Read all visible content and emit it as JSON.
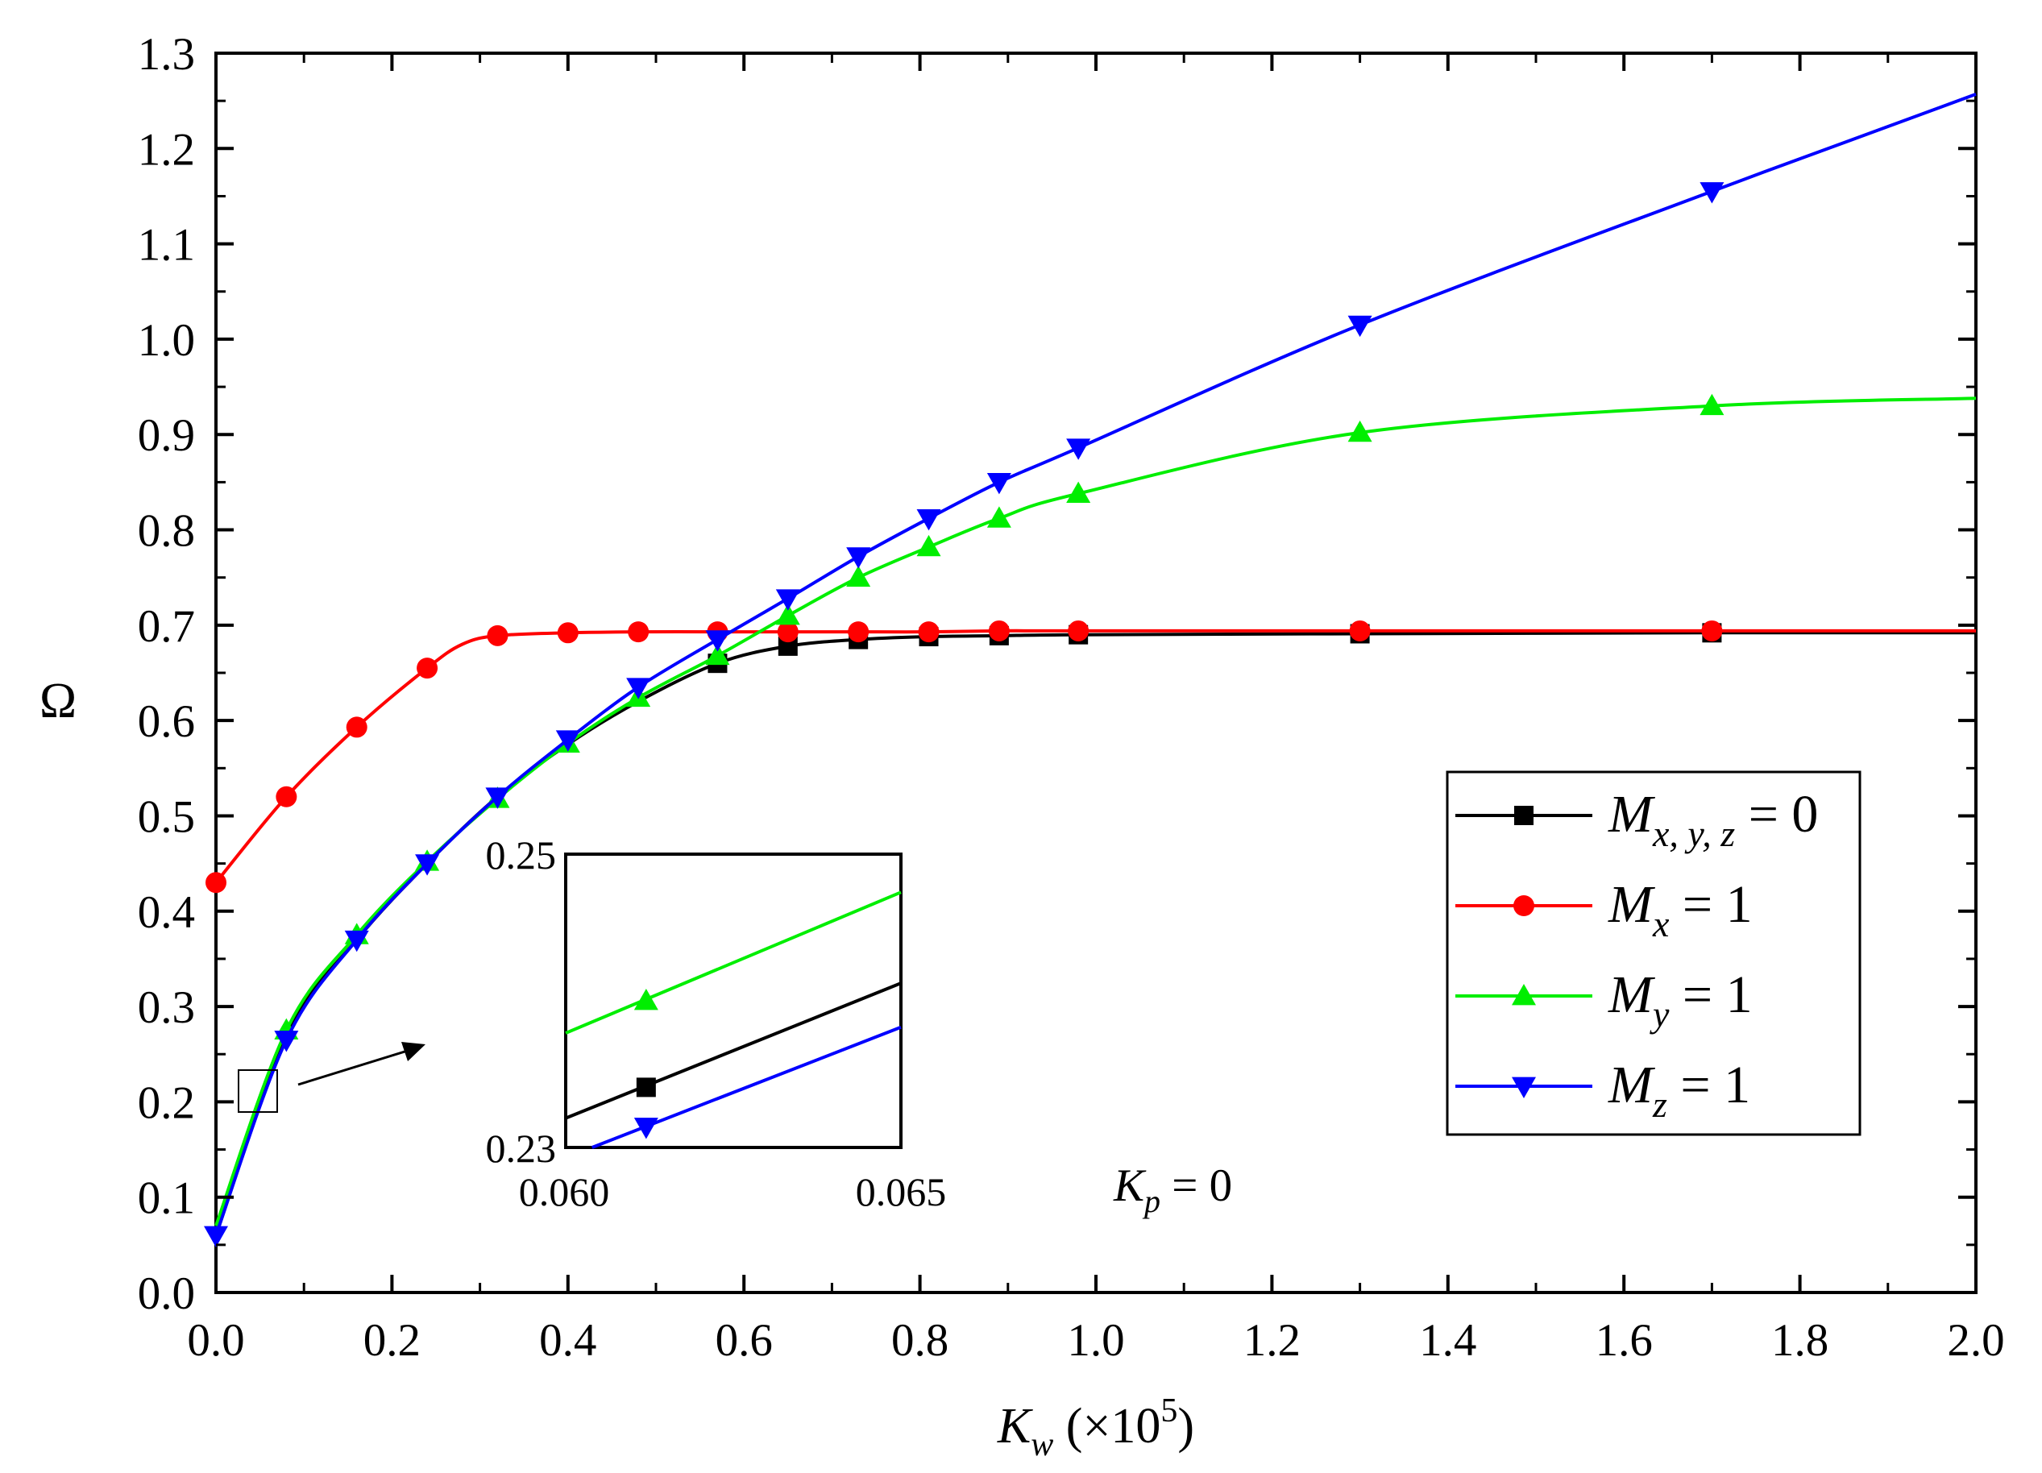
{
  "chart_data": {
    "type": "line",
    "title": "",
    "xlabel": {
      "main": "K",
      "sub": "w",
      "rest": " (×10",
      "sup": "5",
      "close": ")"
    },
    "ylabel": "Ω",
    "xlim": [
      0.0,
      2.0
    ],
    "ylim": [
      0.0,
      1.3
    ],
    "x_ticks": [
      "0.0",
      "0.2",
      "0.4",
      "0.6",
      "0.8",
      "1.0",
      "1.2",
      "1.4",
      "1.6",
      "1.8",
      "2.0"
    ],
    "y_ticks": [
      "0.0",
      "0.1",
      "0.2",
      "0.3",
      "0.4",
      "0.5",
      "0.6",
      "0.7",
      "0.8",
      "0.9",
      "1.0",
      "1.1",
      "1.2",
      "1.3"
    ],
    "grid": false,
    "legend_position": "right",
    "series": [
      {
        "name": "M_{x,y,z} = 0",
        "label_main": "M",
        "label_sub": "x, y, z",
        "label_rest": " = 0",
        "color": "#000000",
        "marker": "square",
        "x": [
          0.0,
          0.08,
          0.16,
          0.24,
          0.32,
          0.4,
          0.48,
          0.57,
          0.65,
          0.73,
          0.81,
          0.89,
          0.98,
          1.3,
          1.7,
          2.0
        ],
        "y": [
          0.06,
          0.27,
          0.37,
          0.45,
          0.52,
          0.575,
          0.62,
          0.66,
          0.678,
          0.685,
          0.688,
          0.689,
          0.69,
          0.691,
          0.692,
          0.692
        ],
        "marker_x": [
          0.57,
          0.65,
          0.73,
          0.81,
          0.89,
          0.98,
          1.3,
          1.7
        ]
      },
      {
        "name": "M_x = 1",
        "label_main": "M",
        "label_sub": "x",
        "label_rest": " = 1",
        "color": "#ff0000",
        "marker": "circle",
        "x": [
          0.0,
          0.08,
          0.16,
          0.24,
          0.28,
          0.32,
          0.4,
          0.48,
          0.57,
          0.65,
          0.73,
          0.81,
          0.89,
          0.98,
          1.3,
          1.7,
          2.0
        ],
        "y": [
          0.43,
          0.52,
          0.593,
          0.655,
          0.68,
          0.689,
          0.692,
          0.693,
          0.693,
          0.693,
          0.693,
          0.693,
          0.694,
          0.694,
          0.694,
          0.694,
          0.694
        ],
        "marker_x": [
          0.0,
          0.08,
          0.16,
          0.24,
          0.32,
          0.4,
          0.48,
          0.57,
          0.65,
          0.73,
          0.81,
          0.89,
          0.98,
          1.3,
          1.7
        ]
      },
      {
        "name": "M_y = 1",
        "label_main": "M",
        "label_sub": "y",
        "label_rest": " = 1",
        "color": "#00ee00",
        "marker": "triangle-up",
        "x": [
          0.0,
          0.08,
          0.16,
          0.24,
          0.32,
          0.4,
          0.48,
          0.57,
          0.65,
          0.73,
          0.81,
          0.89,
          0.98,
          1.3,
          1.7,
          2.0
        ],
        "y": [
          0.07,
          0.275,
          0.375,
          0.452,
          0.518,
          0.576,
          0.624,
          0.668,
          0.71,
          0.75,
          0.782,
          0.812,
          0.838,
          0.902,
          0.93,
          0.938
        ],
        "marker_x": [
          0.08,
          0.16,
          0.24,
          0.32,
          0.4,
          0.48,
          0.57,
          0.65,
          0.73,
          0.81,
          0.89,
          0.98,
          1.3,
          1.7
        ]
      },
      {
        "name": "M_z = 1",
        "label_main": "M",
        "label_sub": "z",
        "label_rest": " = 1",
        "color": "#0000ff",
        "marker": "triangle-down",
        "x": [
          0.0,
          0.08,
          0.16,
          0.24,
          0.32,
          0.4,
          0.48,
          0.57,
          0.65,
          0.73,
          0.81,
          0.89,
          0.98,
          1.3,
          1.7,
          2.0
        ],
        "y": [
          0.06,
          0.265,
          0.37,
          0.45,
          0.52,
          0.58,
          0.635,
          0.685,
          0.728,
          0.772,
          0.812,
          0.85,
          0.886,
          1.015,
          1.155,
          1.257
        ],
        "marker_x": [
          0.0,
          0.08,
          0.16,
          0.24,
          0.32,
          0.4,
          0.48,
          0.57,
          0.65,
          0.73,
          0.81,
          0.89,
          0.98,
          1.3,
          1.7
        ]
      }
    ],
    "inset": {
      "xlim": [
        0.06,
        0.065
      ],
      "ylim": [
        0.23,
        0.25
      ],
      "x_ticks": [
        "0.060",
        "0.065"
      ],
      "y_ticks": [
        "0.23",
        "0.25"
      ],
      "series": [
        {
          "color": "#00ee00",
          "marker": "triangle-up",
          "y0": 0.2378,
          "y1": 0.2474,
          "marker_x": 0.0612,
          "marker_y": 0.24
        },
        {
          "color": "#000000",
          "marker": "square",
          "y0": 0.232,
          "y1": 0.2412,
          "marker_x": 0.0612,
          "marker_y": 0.2341
        },
        {
          "color": "#0000ff",
          "marker": "triangle-down",
          "y0": 0.2293,
          "y1": 0.2382,
          "marker_x": 0.0612,
          "marker_y": 0.2314
        }
      ]
    },
    "annotation": {
      "main": "K",
      "sub": "p",
      "rest": " = 0"
    }
  }
}
